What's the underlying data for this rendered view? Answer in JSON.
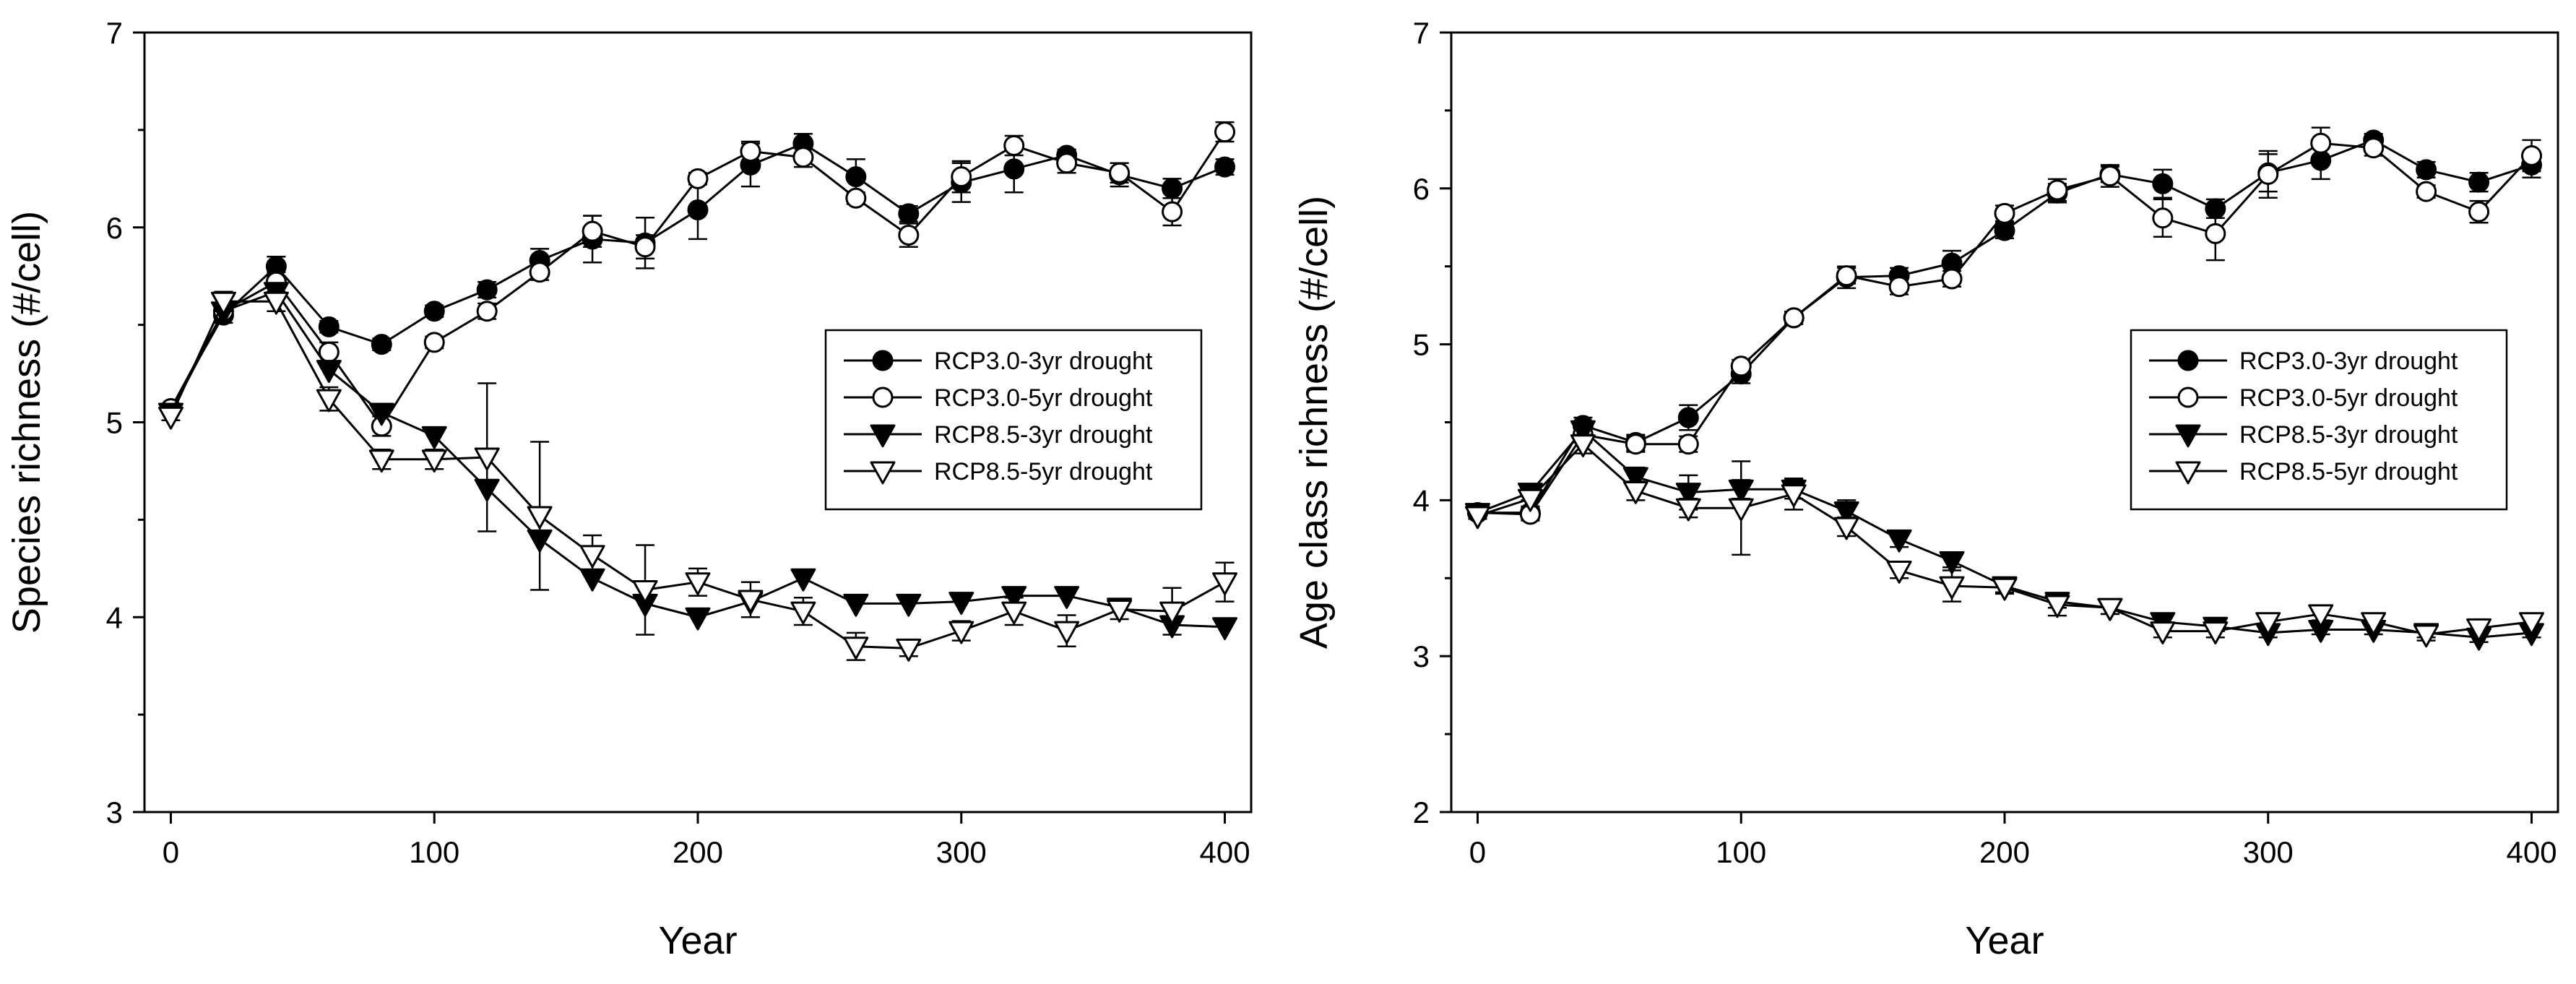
{
  "chart_data": [
    {
      "type": "line",
      "xlabel": "Year",
      "ylabel": "Species richness (#/cell)",
      "xlim": [
        -10,
        410
      ],
      "ylim": [
        3,
        7
      ],
      "xticks": [
        0,
        100,
        200,
        300,
        400
      ],
      "yticks": [
        3,
        4,
        5,
        6,
        7
      ],
      "legend_position": "middle-right",
      "x": [
        0,
        20,
        40,
        60,
        80,
        100,
        120,
        140,
        160,
        180,
        200,
        220,
        240,
        260,
        280,
        300,
        320,
        340,
        360,
        380,
        400
      ],
      "series": [
        {
          "name": "RCP3.0-3yr drought",
          "marker": "filled-circle",
          "values": [
            5.07,
            5.55,
            5.8,
            5.49,
            5.4,
            5.57,
            5.68,
            5.83,
            5.94,
            5.92,
            6.09,
            6.32,
            6.43,
            6.26,
            6.07,
            6.23,
            6.3,
            6.37,
            6.27,
            6.2,
            6.31
          ],
          "errors": [
            0.02,
            0.04,
            0.05,
            0.03,
            0.03,
            0.03,
            0.04,
            0.06,
            0.12,
            0.13,
            0.15,
            0.11,
            0.05,
            0.09,
            0.04,
            0.1,
            0.12,
            0.03,
            0.06,
            0.05,
            0.04
          ]
        },
        {
          "name": "RCP3.0-5yr drought",
          "marker": "open-circle",
          "values": [
            5.07,
            5.57,
            5.72,
            5.36,
            4.98,
            5.41,
            5.57,
            5.77,
            5.98,
            5.9,
            6.25,
            6.39,
            6.36,
            6.15,
            5.96,
            6.26,
            6.42,
            6.33,
            6.28,
            6.08,
            6.49
          ],
          "errors": [
            0.02,
            0.04,
            0.05,
            0.05,
            0.05,
            0.03,
            0.04,
            0.04,
            0.08,
            0.06,
            0.03,
            0.05,
            0.05,
            0.03,
            0.06,
            0.08,
            0.05,
            0.05,
            0.05,
            0.07,
            0.05
          ]
        },
        {
          "name": "RCP8.5-3yr drought",
          "marker": "filled-triangle-down",
          "values": [
            5.05,
            5.57,
            5.67,
            5.27,
            5.05,
            4.93,
            4.66,
            4.4,
            4.2,
            4.07,
            4.0,
            4.08,
            4.2,
            4.07,
            4.07,
            4.08,
            4.11,
            4.11,
            4.05,
            3.96,
            3.95
          ]
        },
        {
          "name": "RCP8.5-5yr drought",
          "marker": "open-triangle-down",
          "values": [
            5.03,
            5.62,
            5.62,
            5.12,
            4.81,
            4.81,
            4.82,
            4.52,
            4.32,
            4.14,
            4.18,
            4.09,
            4.03,
            3.85,
            3.84,
            3.93,
            4.03,
            3.93,
            4.04,
            4.03,
            4.18
          ],
          "errors": [
            0.02,
            0.05,
            0.05,
            0.06,
            0.05,
            0.05,
            0.38,
            0.38,
            0.1,
            0.23,
            0.07,
            0.09,
            0.07,
            0.07,
            0.04,
            0.05,
            0.07,
            0.08,
            0.05,
            0.12,
            0.1
          ]
        }
      ]
    },
    {
      "type": "line",
      "xlabel": "Year",
      "ylabel": "Age class richness (#/cell)",
      "xlim": [
        -10,
        410
      ],
      "ylim": [
        2,
        7
      ],
      "xticks": [
        0,
        100,
        200,
        300,
        400
      ],
      "yticks": [
        2,
        3,
        4,
        5,
        6,
        7
      ],
      "legend_position": "middle-right",
      "x": [
        0,
        20,
        40,
        60,
        80,
        100,
        120,
        140,
        160,
        180,
        200,
        220,
        240,
        260,
        280,
        300,
        320,
        340,
        360,
        380,
        400
      ],
      "series": [
        {
          "name": "RCP3.0-3yr drought",
          "marker": "filled-circle",
          "values": [
            3.92,
            3.92,
            4.48,
            4.37,
            4.53,
            4.81,
            5.17,
            5.43,
            5.44,
            5.52,
            5.73,
            5.97,
            6.09,
            6.03,
            5.87,
            6.1,
            6.18,
            6.31,
            6.12,
            6.04,
            6.15
          ],
          "errors": [
            0.02,
            0.04,
            0.05,
            0.05,
            0.08,
            0.06,
            0.04,
            0.07,
            0.05,
            0.08,
            0.05,
            0.06,
            0.05,
            0.09,
            0.06,
            0.12,
            0.12,
            0.04,
            0.05,
            0.06,
            0.08
          ]
        },
        {
          "name": "RCP3.0-5yr drought",
          "marker": "open-circle",
          "values": [
            3.92,
            3.91,
            4.42,
            4.36,
            4.36,
            4.86,
            5.17,
            5.44,
            5.37,
            5.42,
            5.84,
            5.99,
            6.08,
            5.81,
            5.71,
            6.09,
            6.29,
            6.26,
            5.98,
            5.85,
            6.21
          ],
          "errors": [
            0.02,
            0.04,
            0.05,
            0.05,
            0.05,
            0.04,
            0.04,
            0.05,
            0.05,
            0.05,
            0.05,
            0.07,
            0.07,
            0.12,
            0.17,
            0.15,
            0.1,
            0.05,
            0.04,
            0.07,
            0.1
          ]
        },
        {
          "name": "RCP8.5-3yr drought",
          "marker": "filled-triangle-down",
          "values": [
            3.92,
            4.05,
            4.45,
            4.15,
            4.05,
            4.07,
            4.07,
            3.93,
            3.75,
            3.61,
            3.45,
            3.35,
            3.31,
            3.22,
            3.19,
            3.15,
            3.17,
            3.17,
            3.15,
            3.12,
            3.15
          ],
          "errors": [
            0.02,
            0.05,
            0.05,
            0.06,
            0.11,
            0.06,
            0.06,
            0.07,
            0.05,
            0.04,
            0.04,
            0.04,
            0.04,
            0.03,
            0.03,
            0.03,
            0.03,
            0.03,
            0.03,
            0.03,
            0.03
          ]
        },
        {
          "name": "RCP8.5-5yr drought",
          "marker": "open-triangle-down",
          "values": [
            3.9,
            4.01,
            4.36,
            4.06,
            3.95,
            3.95,
            4.04,
            3.83,
            3.55,
            3.45,
            3.44,
            3.33,
            3.31,
            3.16,
            3.16,
            3.22,
            3.27,
            3.22,
            3.14,
            3.18,
            3.22
          ],
          "errors": [
            0.02,
            0.05,
            0.06,
            0.06,
            0.06,
            0.3,
            0.1,
            0.06,
            0.05,
            0.1,
            0.04,
            0.07,
            0.04,
            0.04,
            0.04,
            0.04,
            0.04,
            0.03,
            0.04,
            0.04,
            0.04
          ]
        }
      ]
    }
  ]
}
